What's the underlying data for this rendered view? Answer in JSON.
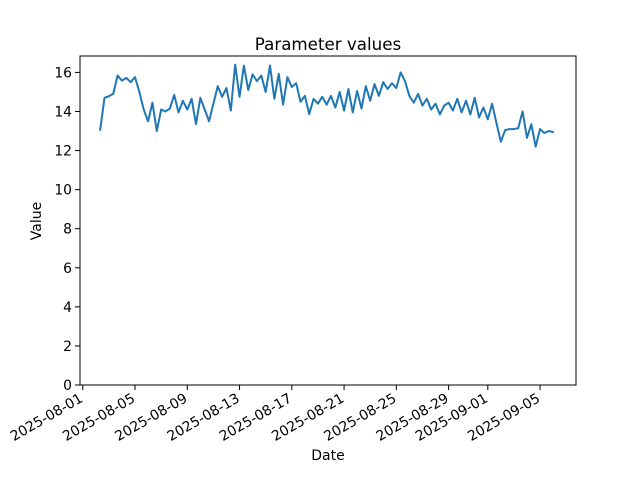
{
  "chart_data": {
    "type": "line",
    "title": "Parameter values",
    "xlabel": "Date",
    "ylabel": "Value",
    "grid": false,
    "legend": false,
    "x_axis": {
      "tick_labels": [
        "2025-08-01",
        "2025-08-05",
        "2025-08-09",
        "2025-08-13",
        "2025-08-17",
        "2025-08-21",
        "2025-08-25",
        "2025-08-29",
        "2025-09-01",
        "2025-09-05"
      ],
      "tick_days_after_2025_08_01": [
        0,
        4,
        8,
        12,
        16,
        20,
        24,
        28,
        31,
        35
      ],
      "lim_days": [
        -0.21,
        37.75
      ],
      "label_rotation_deg": 30
    },
    "y_axis": {
      "ticks": [
        0,
        2,
        4,
        6,
        8,
        10,
        12,
        14,
        16
      ],
      "lim": [
        0,
        16.84
      ]
    },
    "series": [
      {
        "color": "#1f77b4",
        "start_datetime": "2025-08-02 08:00",
        "step_hours": 8,
        "x_start_day": 1.3333,
        "x_step_day": 0.3333,
        "values": [
          13.05,
          14.7,
          14.78,
          14.9,
          15.84,
          15.58,
          15.72,
          15.5,
          15.76,
          15.0,
          14.1,
          13.5,
          14.45,
          13.0,
          14.1,
          14.0,
          14.15,
          14.85,
          13.95,
          14.55,
          14.1,
          14.65,
          13.35,
          14.7,
          14.1,
          13.5,
          14.4,
          15.3,
          14.75,
          15.2,
          14.05,
          16.4,
          14.75,
          16.35,
          15.1,
          15.9,
          15.55,
          15.84,
          15.0,
          16.35,
          14.65,
          15.93,
          14.35,
          15.76,
          15.25,
          15.45,
          14.5,
          14.8,
          13.87,
          14.64,
          14.4,
          14.75,
          14.35,
          14.8,
          14.2,
          15.0,
          14.05,
          15.15,
          13.95,
          15.05,
          14.15,
          15.3,
          14.55,
          15.4,
          14.8,
          15.5,
          15.15,
          15.45,
          15.2,
          16.0,
          15.55,
          14.8,
          14.45,
          14.9,
          14.3,
          14.65,
          14.1,
          14.4,
          13.85,
          14.3,
          14.45,
          14.05,
          14.65,
          13.95,
          14.55,
          13.85,
          14.7,
          13.7,
          14.2,
          13.6,
          14.4,
          13.4,
          12.45,
          13.05,
          13.1,
          13.1,
          13.15,
          14.0,
          12.65,
          13.35,
          12.2,
          13.1,
          12.9,
          13.0,
          12.95
        ]
      }
    ]
  }
}
